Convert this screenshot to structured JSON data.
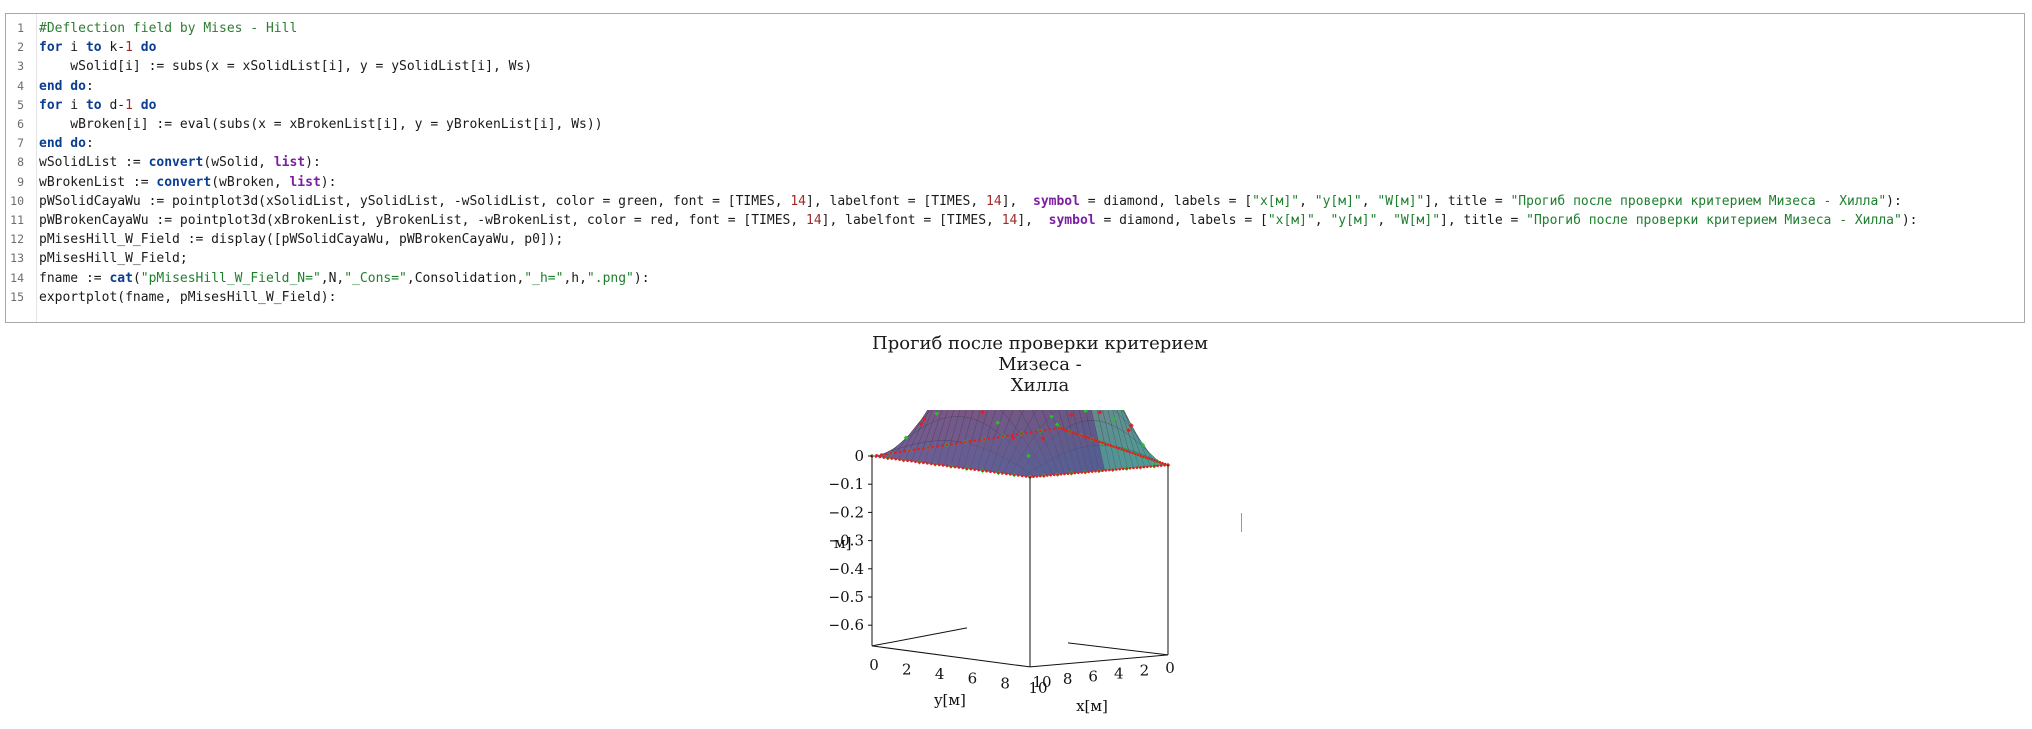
{
  "code": {
    "line_numbers": [
      "1",
      "2",
      "3",
      "4",
      "5",
      "6",
      "7",
      "8",
      "9",
      "10",
      "11",
      "12",
      "13",
      "14",
      "15"
    ],
    "lines": [
      [
        {
          "t": "#Deflection field by Mises - Hill",
          "c": "cm"
        }
      ],
      [
        {
          "t": "for",
          "c": "kw"
        },
        {
          "t": " i "
        },
        {
          "t": "to",
          "c": "kw"
        },
        {
          "t": " k-"
        },
        {
          "t": "1",
          "c": "num"
        },
        {
          "t": " "
        },
        {
          "t": "do",
          "c": "kw"
        }
      ],
      [
        {
          "t": "    wSolid[i] := subs(x = xSolidList[i], y = ySolidList[i], Ws)"
        }
      ],
      [
        {
          "t": "end do",
          "c": "kw"
        },
        {
          "t": ":"
        }
      ],
      [
        {
          "t": "for",
          "c": "kw"
        },
        {
          "t": " i "
        },
        {
          "t": "to",
          "c": "kw"
        },
        {
          "t": " d-"
        },
        {
          "t": "1",
          "c": "num"
        },
        {
          "t": " "
        },
        {
          "t": "do",
          "c": "kw"
        }
      ],
      [
        {
          "t": "    wBroken[i] := eval(subs(x = xBrokenList[i], y = yBrokenList[i], Ws))"
        }
      ],
      [
        {
          "t": "end do",
          "c": "kw"
        },
        {
          "t": ":"
        }
      ],
      [
        {
          "t": "wSolidList := "
        },
        {
          "t": "convert",
          "c": "fn"
        },
        {
          "t": "(wSolid, "
        },
        {
          "t": "list",
          "c": "sym"
        },
        {
          "t": "):"
        }
      ],
      [
        {
          "t": "wBrokenList := "
        },
        {
          "t": "convert",
          "c": "fn"
        },
        {
          "t": "(wBroken, "
        },
        {
          "t": "list",
          "c": "sym"
        },
        {
          "t": "):"
        }
      ],
      [
        {
          "t": "pWSolidCayaWu := pointplot3d(xSolidList, ySolidList, -wSolidList, color = green, font = [TIMES, "
        },
        {
          "t": "14",
          "c": "num"
        },
        {
          "t": "], labelfont = [TIMES, "
        },
        {
          "t": "14",
          "c": "num"
        },
        {
          "t": "],  "
        },
        {
          "t": "symbol",
          "c": "sym"
        },
        {
          "t": " = diamond, labels = ["
        },
        {
          "t": "\"x[м]\"",
          "c": "str"
        },
        {
          "t": ", "
        },
        {
          "t": "\"y[м]\"",
          "c": "str"
        },
        {
          "t": ", "
        },
        {
          "t": "\"W[м]\"",
          "c": "str"
        },
        {
          "t": "], title = "
        },
        {
          "t": "\"Прогиб после проверки критерием Мизеса - Хилла\"",
          "c": "str"
        },
        {
          "t": "):"
        }
      ],
      [
        {
          "t": "pWBrokenCayaWu := pointplot3d(xBrokenList, yBrokenList, -wBrokenList, color = red, font = [TIMES, "
        },
        {
          "t": "14",
          "c": "num"
        },
        {
          "t": "], labelfont = [TIMES, "
        },
        {
          "t": "14",
          "c": "num"
        },
        {
          "t": "],  "
        },
        {
          "t": "symbol",
          "c": "sym"
        },
        {
          "t": " = diamond, labels = ["
        },
        {
          "t": "\"x[м]\"",
          "c": "str"
        },
        {
          "t": ", "
        },
        {
          "t": "\"y[м]\"",
          "c": "str"
        },
        {
          "t": ", "
        },
        {
          "t": "\"W[м]\"",
          "c": "str"
        },
        {
          "t": "], title = "
        },
        {
          "t": "\"Прогиб после проверки критерием Мизеса - Хилла\"",
          "c": "str"
        },
        {
          "t": "):"
        }
      ],
      [
        {
          "t": "pMisesHill_W_Field := display([pWSolidCayaWu, pWBrokenCayaWu, p0]);"
        }
      ],
      [
        {
          "t": "pMisesHill_W_Field;"
        }
      ],
      [
        {
          "t": "fname := "
        },
        {
          "t": "cat",
          "c": "fn"
        },
        {
          "t": "("
        },
        {
          "t": "\"pMisesHill_W_Field_N=\"",
          "c": "str"
        },
        {
          "t": ",N,"
        },
        {
          "t": "\"_Cons=\"",
          "c": "str"
        },
        {
          "t": ",Consolidation,"
        },
        {
          "t": "\"_h=\"",
          "c": "str"
        },
        {
          "t": ",h,"
        },
        {
          "t": "\".png\"",
          "c": "str"
        },
        {
          "t": "):"
        }
      ],
      [
        {
          "t": "exportplot(fname, pMisesHill_W_Field):"
        }
      ]
    ]
  },
  "plot": {
    "title_line1": "Прогиб после проверки критерием Мизеса -",
    "title_line2": "Хилла",
    "z_axis_label": "м]",
    "x_axis_label": "x[м]",
    "y_axis_label": "y[м]",
    "z_ticks": [
      "0",
      "−0.1",
      "−0.2",
      "−0.3",
      "−0.4",
      "−0.5",
      "−0.6"
    ],
    "y_ticks": [
      "0",
      "2",
      "4",
      "6",
      "8",
      "10"
    ],
    "x_ticks": [
      "10",
      "8",
      "6",
      "4",
      "2",
      "0"
    ],
    "colors": {
      "solid_points": "#22c322",
      "broken_points": "#e02020",
      "surface_top": "#4a3f9a",
      "surface_bottom": "#8a1f2a"
    }
  }
}
